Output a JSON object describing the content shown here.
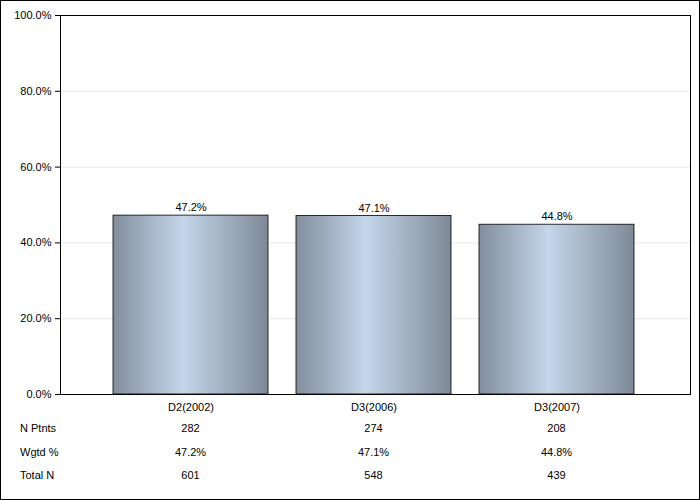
{
  "chart_data": {
    "type": "bar",
    "categories": [
      "D2(2002)",
      "D3(2006)",
      "D3(2007)"
    ],
    "values": [
      47.2,
      47.1,
      44.8
    ],
    "value_labels": [
      "47.2%",
      "47.1%",
      "44.8%"
    ],
    "data_labels": true,
    "color": "#a7b6c8",
    "ylim": [
      0,
      100
    ],
    "yticks": [
      {
        "value": 0,
        "label": "0.0%"
      },
      {
        "value": 20,
        "label": "20.0%"
      },
      {
        "value": 40,
        "label": "40.0%"
      },
      {
        "value": 60,
        "label": "60.0%"
      },
      {
        "value": 80,
        "label": "80.0%"
      },
      {
        "value": 100,
        "label": "100.0%"
      }
    ],
    "grid": true,
    "table": [
      {
        "label": "N Ptnts",
        "values": [
          282,
          274,
          208
        ]
      },
      {
        "label": "Wgtd %",
        "values": [
          47.2,
          47.1,
          44.8
        ],
        "value_labels": [
          "47.2%",
          "47.1%",
          "44.8%"
        ]
      },
      {
        "label": "Total N",
        "values": [
          601,
          548,
          439
        ]
      }
    ]
  }
}
